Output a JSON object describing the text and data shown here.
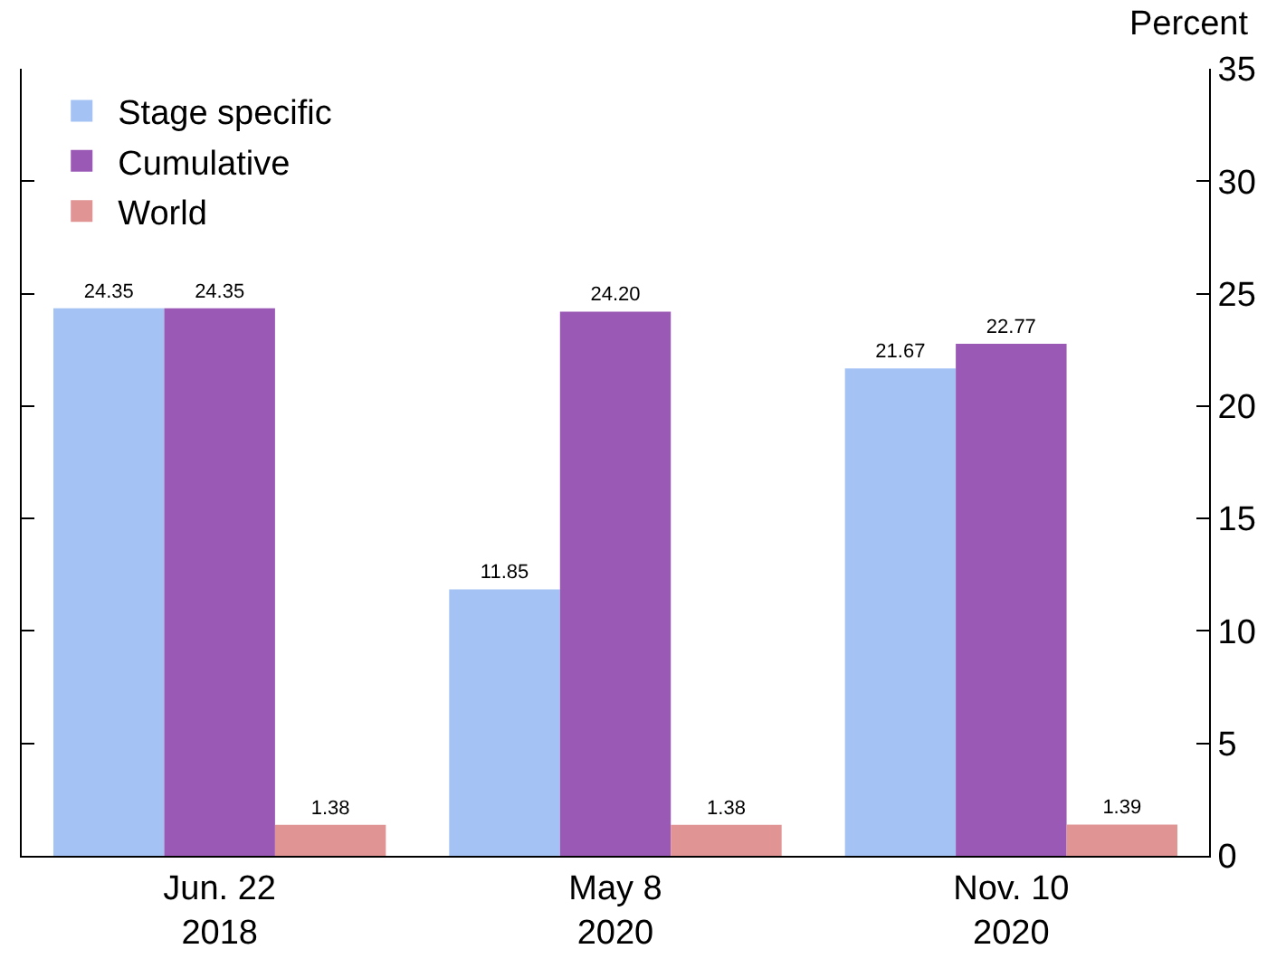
{
  "chart_data": {
    "type": "bar",
    "ylabel": "Percent",
    "categories": [
      "Jun. 22\n2018",
      "May 8\n2020",
      "Nov. 10\n2020"
    ],
    "series": [
      {
        "name": "Stage specific",
        "color": "#a4c2f4",
        "values": [
          24.35,
          11.85,
          21.67
        ],
        "value_labels": [
          "24.35",
          "11.85",
          "21.67"
        ]
      },
      {
        "name": "Cumulative",
        "color": "#9b59b6",
        "values": [
          24.35,
          24.2,
          22.77
        ],
        "value_labels": [
          "24.35",
          "24.20",
          "22.77"
        ]
      },
      {
        "name": "World",
        "color": "#e09494",
        "values": [
          1.38,
          1.38,
          1.39
        ],
        "value_labels": [
          "1.38",
          "1.38",
          "1.39"
        ]
      }
    ],
    "ylim": [
      0,
      35
    ],
    "yticks": [
      0,
      5,
      10,
      15,
      20,
      25,
      30,
      35
    ],
    "grid": false,
    "legend": "top left"
  }
}
